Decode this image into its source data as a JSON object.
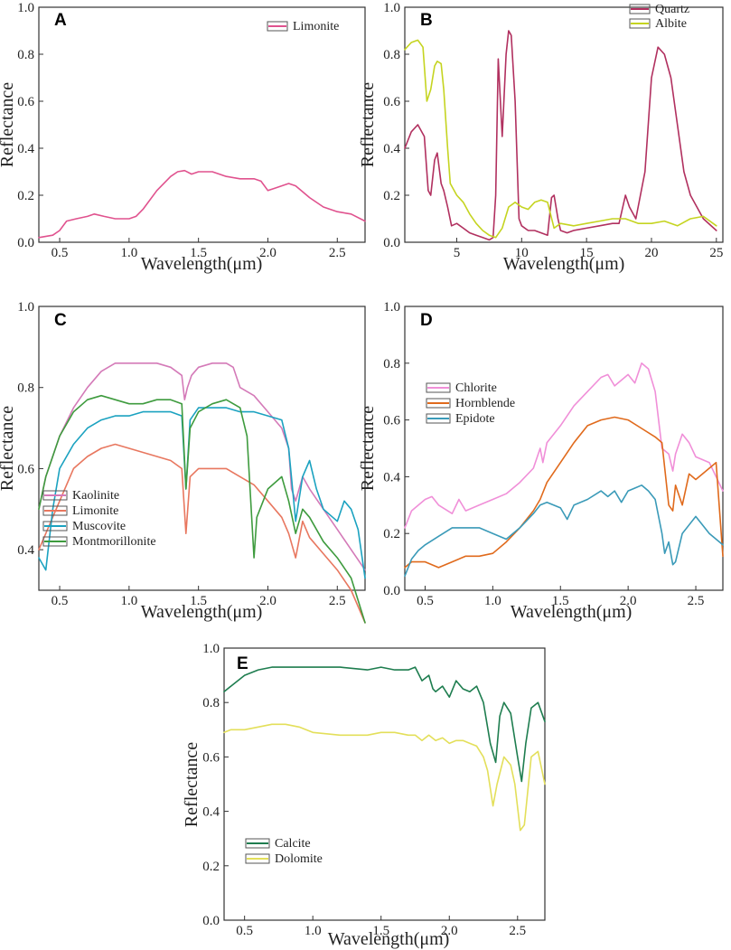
{
  "chart_data": [
    {
      "panel": "A",
      "type": "line",
      "title": "",
      "xlabel": "Wavelength(μm)",
      "ylabel": "",
      "xlim": [
        0.35,
        2.7
      ],
      "ylim": [
        0,
        1.0
      ],
      "xticks": [
        "0.5",
        "1.0",
        "1.5",
        "2.0",
        "2.5"
      ],
      "yticks": [
        "0.0",
        "0.2",
        "0.4",
        "0.6",
        "0.8",
        "1.0"
      ],
      "legend_position": "top-right",
      "series": [
        {
          "name": "Limonite",
          "color": "#e0528e",
          "x": [
            0.35,
            0.45,
            0.5,
            0.55,
            0.62,
            0.7,
            0.75,
            0.82,
            0.9,
            1.0,
            1.05,
            1.1,
            1.2,
            1.3,
            1.35,
            1.4,
            1.45,
            1.5,
            1.55,
            1.6,
            1.65,
            1.7,
            1.8,
            1.9,
            1.95,
            2.0,
            2.05,
            2.1,
            2.15,
            2.2,
            2.3,
            2.4,
            2.5,
            2.6,
            2.7
          ],
          "y": [
            0.02,
            0.03,
            0.05,
            0.09,
            0.1,
            0.11,
            0.12,
            0.11,
            0.1,
            0.1,
            0.11,
            0.14,
            0.22,
            0.28,
            0.3,
            0.305,
            0.29,
            0.3,
            0.3,
            0.3,
            0.29,
            0.28,
            0.27,
            0.27,
            0.26,
            0.22,
            0.23,
            0.24,
            0.25,
            0.24,
            0.19,
            0.15,
            0.13,
            0.12,
            0.09
          ]
        }
      ]
    },
    {
      "panel": "B",
      "type": "line",
      "title": "",
      "xlabel": "Wavelength(μm)",
      "ylabel": "",
      "xlim": [
        1,
        25.5
      ],
      "ylim": [
        0,
        1.0
      ],
      "xticks": [
        "5",
        "10",
        "15",
        "20",
        "25"
      ],
      "yticks": [
        "0.0",
        "0.2",
        "0.4",
        "0.6",
        "0.8",
        "1.0"
      ],
      "legend_position": "top-right",
      "series": [
        {
          "name": "Quartz",
          "color": "#b1305f",
          "x": [
            1.0,
            1.5,
            2.0,
            2.5,
            2.8,
            3.0,
            3.3,
            3.5,
            3.8,
            4.0,
            4.3,
            4.6,
            5.0,
            5.5,
            6.0,
            6.5,
            7.0,
            7.5,
            7.8,
            8.0,
            8.2,
            8.5,
            8.8,
            9.0,
            9.2,
            9.5,
            9.8,
            10.0,
            10.5,
            11.0,
            12.0,
            12.3,
            12.5,
            12.8,
            13.0,
            13.5,
            14.0,
            15.0,
            16.0,
            17.0,
            17.5,
            18.0,
            18.3,
            18.8,
            19.5,
            20.0,
            20.5,
            21.0,
            21.5,
            22.0,
            22.5,
            23.0,
            24.0,
            25.0
          ],
          "y": [
            0.4,
            0.47,
            0.5,
            0.45,
            0.22,
            0.2,
            0.35,
            0.38,
            0.25,
            0.22,
            0.15,
            0.07,
            0.08,
            0.06,
            0.04,
            0.03,
            0.02,
            0.01,
            0.02,
            0.2,
            0.78,
            0.45,
            0.8,
            0.9,
            0.88,
            0.6,
            0.1,
            0.07,
            0.05,
            0.05,
            0.03,
            0.19,
            0.2,
            0.1,
            0.05,
            0.04,
            0.05,
            0.06,
            0.07,
            0.08,
            0.08,
            0.2,
            0.15,
            0.1,
            0.3,
            0.7,
            0.83,
            0.8,
            0.7,
            0.5,
            0.3,
            0.2,
            0.1,
            0.05
          ]
        },
        {
          "name": "Albite",
          "color": "#c5d420",
          "x": [
            1.0,
            1.5,
            2.0,
            2.4,
            2.7,
            3.0,
            3.3,
            3.5,
            3.8,
            4.0,
            4.3,
            4.5,
            5.0,
            5.5,
            6.0,
            6.5,
            7.0,
            7.5,
            8.0,
            8.5,
            9.0,
            9.5,
            10.0,
            10.5,
            11.0,
            11.5,
            12.0,
            12.5,
            13.0,
            14.0,
            15.0,
            16.0,
            17.0,
            18.0,
            19.0,
            20.0,
            21.0,
            22.0,
            23.0,
            24.0,
            25.0
          ],
          "y": [
            0.82,
            0.85,
            0.86,
            0.83,
            0.6,
            0.65,
            0.75,
            0.77,
            0.76,
            0.65,
            0.4,
            0.25,
            0.2,
            0.17,
            0.12,
            0.08,
            0.05,
            0.03,
            0.02,
            0.06,
            0.15,
            0.17,
            0.15,
            0.14,
            0.17,
            0.18,
            0.17,
            0.06,
            0.08,
            0.07,
            0.08,
            0.09,
            0.1,
            0.1,
            0.08,
            0.08,
            0.09,
            0.07,
            0.1,
            0.11,
            0.07
          ]
        }
      ]
    },
    {
      "panel": "C",
      "type": "line",
      "title": "",
      "xlabel": "Wavelength(μm)",
      "ylabel": "Reflectance",
      "xlim": [
        0.35,
        2.7
      ],
      "ylim": [
        0.3,
        1.0
      ],
      "xticks": [
        "0.5",
        "1.0",
        "1.5",
        "2.0",
        "2.5"
      ],
      "yticks": [
        "0.4",
        "0.6",
        "0.8",
        "1.0"
      ],
      "legend_position": "bottom-left",
      "series": [
        {
          "name": "Kaolinite",
          "color": "#d47ab8",
          "x": [
            0.35,
            0.4,
            0.5,
            0.6,
            0.7,
            0.8,
            0.9,
            1.0,
            1.1,
            1.2,
            1.3,
            1.38,
            1.4,
            1.42,
            1.45,
            1.5,
            1.6,
            1.7,
            1.75,
            1.8,
            1.9,
            2.0,
            2.1,
            2.15,
            2.17,
            2.2,
            2.25,
            2.3,
            2.4,
            2.5,
            2.6,
            2.7
          ],
          "y": [
            0.5,
            0.58,
            0.68,
            0.75,
            0.8,
            0.84,
            0.86,
            0.86,
            0.86,
            0.86,
            0.85,
            0.83,
            0.77,
            0.8,
            0.83,
            0.85,
            0.86,
            0.86,
            0.85,
            0.8,
            0.78,
            0.74,
            0.7,
            0.65,
            0.55,
            0.52,
            0.58,
            0.55,
            0.5,
            0.45,
            0.4,
            0.35
          ]
        },
        {
          "name": "Limonite",
          "color": "#e8775f",
          "x": [
            0.35,
            0.4,
            0.5,
            0.6,
            0.7,
            0.8,
            0.9,
            1.0,
            1.1,
            1.2,
            1.3,
            1.38,
            1.41,
            1.44,
            1.5,
            1.6,
            1.7,
            1.8,
            1.9,
            2.0,
            2.1,
            2.15,
            2.2,
            2.25,
            2.3,
            2.4,
            2.5,
            2.6,
            2.7
          ],
          "y": [
            0.4,
            0.44,
            0.52,
            0.6,
            0.63,
            0.65,
            0.66,
            0.65,
            0.64,
            0.63,
            0.62,
            0.6,
            0.44,
            0.58,
            0.6,
            0.6,
            0.6,
            0.58,
            0.56,
            0.52,
            0.48,
            0.44,
            0.38,
            0.47,
            0.43,
            0.39,
            0.35,
            0.3,
            0.22
          ]
        },
        {
          "name": "Muscovite",
          "color": "#1ba2c0",
          "x": [
            0.35,
            0.4,
            0.45,
            0.5,
            0.6,
            0.7,
            0.8,
            0.9,
            1.0,
            1.1,
            1.2,
            1.3,
            1.38,
            1.41,
            1.44,
            1.5,
            1.6,
            1.7,
            1.8,
            1.9,
            2.0,
            2.1,
            2.15,
            2.2,
            2.25,
            2.3,
            2.35,
            2.4,
            2.5,
            2.55,
            2.6,
            2.65,
            2.7
          ],
          "y": [
            0.38,
            0.35,
            0.5,
            0.6,
            0.66,
            0.7,
            0.72,
            0.73,
            0.73,
            0.74,
            0.74,
            0.74,
            0.73,
            0.55,
            0.72,
            0.75,
            0.75,
            0.75,
            0.74,
            0.74,
            0.73,
            0.72,
            0.65,
            0.47,
            0.58,
            0.62,
            0.55,
            0.5,
            0.47,
            0.52,
            0.5,
            0.45,
            0.33
          ]
        },
        {
          "name": "Montmorillonite",
          "color": "#3e9b3e",
          "x": [
            0.35,
            0.4,
            0.5,
            0.6,
            0.7,
            0.8,
            0.9,
            1.0,
            1.1,
            1.2,
            1.3,
            1.38,
            1.41,
            1.44,
            1.5,
            1.6,
            1.7,
            1.8,
            1.85,
            1.9,
            1.92,
            2.0,
            2.1,
            2.15,
            2.2,
            2.25,
            2.3,
            2.4,
            2.5,
            2.6,
            2.7
          ],
          "y": [
            0.5,
            0.58,
            0.68,
            0.74,
            0.77,
            0.78,
            0.77,
            0.76,
            0.76,
            0.77,
            0.77,
            0.76,
            0.55,
            0.7,
            0.74,
            0.76,
            0.77,
            0.75,
            0.68,
            0.38,
            0.48,
            0.55,
            0.58,
            0.52,
            0.44,
            0.5,
            0.48,
            0.42,
            0.38,
            0.33,
            0.22
          ]
        }
      ]
    },
    {
      "panel": "D",
      "type": "line",
      "title": "",
      "xlabel": "Wavelength(μm)",
      "ylabel": "",
      "xlim": [
        0.35,
        2.7
      ],
      "ylim": [
        0,
        1.0
      ],
      "xticks": [
        "0.5",
        "1.0",
        "1.5",
        "2.0",
        "2.5"
      ],
      "yticks": [
        "0.0",
        "0.2",
        "0.4",
        "0.6",
        "0.8",
        "1.0"
      ],
      "legend_position": "top-left",
      "series": [
        {
          "name": "Chlorite",
          "color": "#f08fd8",
          "x": [
            0.35,
            0.4,
            0.5,
            0.55,
            0.6,
            0.7,
            0.75,
            0.8,
            0.9,
            1.0,
            1.1,
            1.2,
            1.3,
            1.35,
            1.37,
            1.4,
            1.5,
            1.6,
            1.7,
            1.8,
            1.85,
            1.9,
            2.0,
            2.05,
            2.1,
            2.15,
            2.2,
            2.25,
            2.3,
            2.33,
            2.35,
            2.4,
            2.45,
            2.5,
            2.6,
            2.7
          ],
          "y": [
            0.22,
            0.28,
            0.32,
            0.33,
            0.3,
            0.27,
            0.32,
            0.28,
            0.3,
            0.32,
            0.34,
            0.38,
            0.43,
            0.5,
            0.45,
            0.52,
            0.58,
            0.65,
            0.7,
            0.75,
            0.76,
            0.72,
            0.76,
            0.73,
            0.8,
            0.78,
            0.7,
            0.5,
            0.48,
            0.42,
            0.48,
            0.55,
            0.52,
            0.47,
            0.45,
            0.35
          ]
        },
        {
          "name": "Hornblende",
          "color": "#e06a1c",
          "x": [
            0.35,
            0.4,
            0.5,
            0.6,
            0.7,
            0.8,
            0.9,
            1.0,
            1.1,
            1.2,
            1.3,
            1.35,
            1.4,
            1.5,
            1.6,
            1.7,
            1.8,
            1.9,
            2.0,
            2.1,
            2.2,
            2.25,
            2.3,
            2.33,
            2.35,
            2.4,
            2.45,
            2.5,
            2.6,
            2.65,
            2.7
          ],
          "y": [
            0.08,
            0.1,
            0.1,
            0.08,
            0.1,
            0.12,
            0.12,
            0.13,
            0.17,
            0.22,
            0.28,
            0.32,
            0.38,
            0.45,
            0.52,
            0.58,
            0.6,
            0.61,
            0.6,
            0.57,
            0.54,
            0.52,
            0.3,
            0.28,
            0.37,
            0.3,
            0.41,
            0.39,
            0.43,
            0.45,
            0.12
          ]
        },
        {
          "name": "Epidote",
          "color": "#3a9ab8",
          "x": [
            0.35,
            0.4,
            0.45,
            0.5,
            0.6,
            0.7,
            0.8,
            0.9,
            1.0,
            1.1,
            1.2,
            1.3,
            1.35,
            1.4,
            1.5,
            1.55,
            1.6,
            1.7,
            1.8,
            1.85,
            1.9,
            1.95,
            2.0,
            2.05,
            2.1,
            2.15,
            2.2,
            2.25,
            2.27,
            2.3,
            2.33,
            2.35,
            2.4,
            2.5,
            2.6,
            2.7
          ],
          "y": [
            0.05,
            0.11,
            0.14,
            0.16,
            0.19,
            0.22,
            0.22,
            0.22,
            0.2,
            0.18,
            0.22,
            0.27,
            0.3,
            0.31,
            0.29,
            0.25,
            0.3,
            0.32,
            0.35,
            0.33,
            0.35,
            0.31,
            0.35,
            0.36,
            0.37,
            0.35,
            0.32,
            0.2,
            0.13,
            0.17,
            0.09,
            0.1,
            0.2,
            0.26,
            0.2,
            0.16
          ]
        }
      ]
    },
    {
      "panel": "E",
      "type": "line",
      "title": "",
      "xlabel": "Wavelength(μm)",
      "ylabel": "Reflectance",
      "xlim": [
        0.35,
        2.7
      ],
      "ylim": [
        0,
        1.0
      ],
      "xticks": [
        "0.5",
        "1.0",
        "1.5",
        "2.0",
        "2.5"
      ],
      "yticks": [
        "0.0",
        "0.2",
        "0.4",
        "0.6",
        "0.8",
        "1.0"
      ],
      "legend_position": "bottom-left",
      "series": [
        {
          "name": "Calcite",
          "color": "#1e7d4f",
          "x": [
            0.35,
            0.4,
            0.5,
            0.6,
            0.7,
            0.8,
            0.9,
            1.0,
            1.2,
            1.4,
            1.5,
            1.6,
            1.7,
            1.75,
            1.8,
            1.85,
            1.88,
            1.9,
            1.95,
            2.0,
            2.05,
            2.1,
            2.15,
            2.2,
            2.25,
            2.3,
            2.34,
            2.37,
            2.4,
            2.45,
            2.5,
            2.53,
            2.56,
            2.6,
            2.65,
            2.7
          ],
          "y": [
            0.84,
            0.86,
            0.9,
            0.92,
            0.93,
            0.93,
            0.93,
            0.93,
            0.93,
            0.92,
            0.93,
            0.92,
            0.92,
            0.93,
            0.88,
            0.9,
            0.85,
            0.84,
            0.86,
            0.82,
            0.88,
            0.85,
            0.84,
            0.86,
            0.8,
            0.65,
            0.58,
            0.75,
            0.8,
            0.76,
            0.6,
            0.51,
            0.65,
            0.78,
            0.8,
            0.73
          ]
        },
        {
          "name": "Dolomite",
          "color": "#e3df5a",
          "x": [
            0.35,
            0.4,
            0.5,
            0.6,
            0.7,
            0.8,
            0.9,
            1.0,
            1.2,
            1.4,
            1.5,
            1.6,
            1.7,
            1.75,
            1.8,
            1.85,
            1.9,
            1.95,
            2.0,
            2.05,
            2.1,
            2.15,
            2.2,
            2.25,
            2.28,
            2.32,
            2.35,
            2.4,
            2.45,
            2.48,
            2.52,
            2.55,
            2.6,
            2.65,
            2.7
          ],
          "y": [
            0.69,
            0.7,
            0.7,
            0.71,
            0.72,
            0.72,
            0.71,
            0.69,
            0.68,
            0.68,
            0.69,
            0.69,
            0.68,
            0.68,
            0.66,
            0.68,
            0.66,
            0.67,
            0.65,
            0.66,
            0.66,
            0.65,
            0.64,
            0.6,
            0.55,
            0.42,
            0.5,
            0.6,
            0.57,
            0.5,
            0.33,
            0.35,
            0.6,
            0.62,
            0.5
          ]
        }
      ]
    }
  ]
}
